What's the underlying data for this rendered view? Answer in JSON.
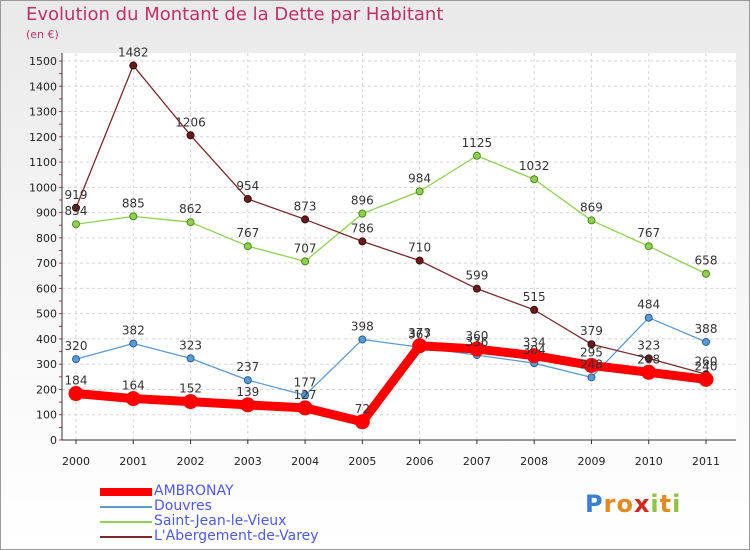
{
  "header": {
    "title": "Evolution du Montant de la Dette par Habitant",
    "unit": "(en €)"
  },
  "logo": {
    "letters": [
      "P",
      "r",
      "o",
      "x",
      "i",
      "t",
      "i"
    ]
  },
  "colors": {
    "title": "#c0306a",
    "ambronay": "#ff0000",
    "douvres": "#5b9bd5",
    "saint_jean": "#8fd14f",
    "abergement": "#7a2a2a"
  },
  "chart_data": {
    "type": "line",
    "title": "Evolution du Montant de la Dette par Habitant",
    "ylabel": "(en €)",
    "xlabel": "",
    "ylim": [
      0,
      1500
    ],
    "yticks": [
      0,
      100,
      200,
      300,
      400,
      500,
      600,
      700,
      800,
      900,
      1000,
      1100,
      1200,
      1300,
      1400,
      1500
    ],
    "grid": true,
    "legend_position": "bottom-left",
    "x": [
      "2000",
      "2001",
      "2002",
      "2003",
      "2004",
      "2005",
      "2006",
      "2007",
      "2008",
      "2009",
      "2010",
      "2011"
    ],
    "series": [
      {
        "name": "AMBRONAY",
        "color": "#ff0000",
        "values": [
          184,
          164,
          152,
          139,
          127,
          72,
          373,
          360,
          334,
          295,
          268,
          240
        ]
      },
      {
        "name": "Douvres",
        "color": "#5b9bd5",
        "values": [
          320,
          382,
          323,
          237,
          177,
          398,
          367,
          336,
          304,
          248,
          484,
          388
        ]
      },
      {
        "name": "Saint-Jean-le-Vieux",
        "color": "#8fd14f",
        "values": [
          854,
          885,
          862,
          767,
          707,
          896,
          984,
          1125,
          1032,
          869,
          767,
          658
        ]
      },
      {
        "name": "L'Abergement-de-Varey",
        "color": "#7a2a2a",
        "values": [
          919,
          1482,
          1206,
          954,
          873,
          786,
          710,
          599,
          515,
          379,
          323,
          260
        ]
      }
    ]
  }
}
